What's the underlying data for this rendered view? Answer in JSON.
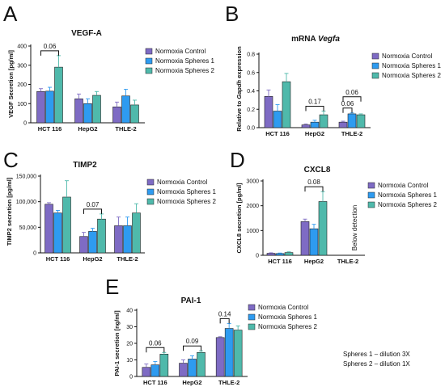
{
  "colors": {
    "normoxia_control": "#7e6bc4",
    "normoxia_spheres_1": "#2e9bf0",
    "normoxia_spheres_2": "#4fb9ab",
    "axis": "#111111"
  },
  "legend_labels": [
    "Normoxia Control",
    "Normoxia Spheres 1",
    "Normoxia Spheres 2"
  ],
  "notes": [
    "Spheres 1 – dilution 3X",
    "Spheres 2 – dilution 1X"
  ],
  "chart_data": [
    {
      "id": "A",
      "type": "bar",
      "title": "VEGF-A",
      "ylabel": "VEGF Secretion [pg/ml]",
      "xlabel": "",
      "categories": [
        "HCT 116",
        "HepG2",
        "THLE-2"
      ],
      "ylim": [
        0,
        400
      ],
      "yticks": [
        0,
        100,
        200,
        300,
        400
      ],
      "ytick_labels": [
        "0",
        "100",
        "200",
        "300",
        "400"
      ],
      "series": [
        {
          "name": "Normoxia Control",
          "values": [
            163,
            125,
            83
          ],
          "errors": [
            15,
            25,
            25
          ]
        },
        {
          "name": "Normoxia Spheres 1",
          "values": [
            165,
            100,
            140
          ],
          "errors": [
            20,
            25,
            35
          ]
        },
        {
          "name": "Normoxia Spheres 2",
          "values": [
            290,
            143,
            93
          ],
          "errors": [
            60,
            20,
            25
          ]
        }
      ],
      "comparisons": [
        {
          "cat": 0,
          "from": 0,
          "to": 2,
          "label": "0.06"
        }
      ],
      "grid": false,
      "legend": "right"
    },
    {
      "id": "B",
      "type": "bar",
      "title": "mRNA Vegfa",
      "title_parts": [
        "mRNA ",
        "Vegfa"
      ],
      "ylabel": "Relative to Gapdh expression",
      "ylabel_parts": [
        "Relative to ",
        "Gapdh",
        " expression"
      ],
      "xlabel": "",
      "categories": [
        "HCT 116",
        "HepG2",
        "THLE-2"
      ],
      "ylim": [
        0,
        0.8
      ],
      "yticks": [
        0,
        0.2,
        0.4,
        0.6,
        0.8
      ],
      "ytick_labels": [
        "0.0",
        "0.2",
        "0.4",
        "0.6",
        "0.8"
      ],
      "series": [
        {
          "name": "Normoxia Control",
          "values": [
            0.34,
            0.03,
            0.06
          ],
          "errors": [
            0.07,
            0.01,
            0.01
          ]
        },
        {
          "name": "Normoxia Spheres 1",
          "values": [
            0.18,
            0.06,
            0.15
          ],
          "errors": [
            0.07,
            0.02,
            0.01
          ]
        },
        {
          "name": "Normoxia Spheres 2",
          "values": [
            0.5,
            0.14,
            0.14
          ],
          "errors": [
            0.09,
            0.04,
            0.01
          ]
        }
      ],
      "comparisons": [
        {
          "cat": 1,
          "from": 0,
          "to": 2,
          "label": "0.17"
        },
        {
          "cat": 2,
          "from": 0,
          "to": 1,
          "label": "0.06"
        },
        {
          "cat": 2,
          "from": 0,
          "to": 2,
          "label": "0.06"
        }
      ],
      "grid": false,
      "legend": "right"
    },
    {
      "id": "C",
      "type": "bar",
      "title": "TIMP2",
      "ylabel": "TIMP2 secretion [pg/ml]",
      "xlabel": "",
      "categories": [
        "HCT 116",
        "HepG2",
        "THLE-2"
      ],
      "ylim": [
        0,
        150000
      ],
      "yticks": [
        0,
        50000,
        100000,
        150000
      ],
      "ytick_labels": [
        "0",
        "50,000",
        "100,000",
        "150,000"
      ],
      "series": [
        {
          "name": "Normoxia Control",
          "values": [
            95000,
            32000,
            53000
          ],
          "errors": [
            3000,
            8000,
            17000
          ]
        },
        {
          "name": "Normoxia Spheres 1",
          "values": [
            78000,
            42000,
            53000
          ],
          "errors": [
            5000,
            6000,
            17000
          ]
        },
        {
          "name": "Normoxia Spheres 2",
          "values": [
            109000,
            66000,
            78000
          ],
          "errors": [
            32000,
            10000,
            18000
          ]
        }
      ],
      "comparisons": [
        {
          "cat": 1,
          "from": 0,
          "to": 2,
          "label": "0.07"
        }
      ],
      "grid": false,
      "legend": "right"
    },
    {
      "id": "D",
      "type": "bar",
      "title": "CXCL8",
      "ylabel": "CXCL8 secretion [pg/ml]",
      "xlabel": "",
      "categories": [
        "HCT 116",
        "HepG2",
        "THLE-2"
      ],
      "ylim": [
        0,
        3000
      ],
      "yticks": [
        0,
        1000,
        2000,
        3000
      ],
      "ytick_labels": [
        "0",
        "1000",
        "2000",
        "3000"
      ],
      "series": [
        {
          "name": "Normoxia Control",
          "values": [
            80,
            1360,
            null
          ],
          "errors": [
            20,
            100,
            null
          ]
        },
        {
          "name": "Normoxia Spheres 1",
          "values": [
            70,
            1070,
            null
          ],
          "errors": [
            20,
            180,
            null
          ]
        },
        {
          "name": "Normoxia Spheres 2",
          "values": [
            110,
            2170,
            null
          ],
          "errors": [
            30,
            400,
            null
          ]
        }
      ],
      "comparisons": [
        {
          "cat": 1,
          "from": 0,
          "to": 2,
          "label": "0.08"
        }
      ],
      "annotation": "Below detection",
      "grid": false,
      "legend": "right"
    },
    {
      "id": "E",
      "type": "bar",
      "title": "PAI-1",
      "ylabel": "PAI-1 secretion [ng/ml]",
      "xlabel": "",
      "categories": [
        "HCT 116",
        "HepG2",
        "THLE-2"
      ],
      "ylim": [
        0,
        40
      ],
      "yticks": [
        0,
        10,
        20,
        30,
        40
      ],
      "ytick_labels": [
        "0",
        "10",
        "20",
        "30",
        "40"
      ],
      "series": [
        {
          "name": "Normoxia Control",
          "values": [
            5.5,
            8,
            23.5
          ],
          "errors": [
            2,
            2,
            0.5
          ]
        },
        {
          "name": "Normoxia Spheres 1",
          "values": [
            7,
            10.5,
            29
          ],
          "errors": [
            2,
            2,
            3
          ]
        },
        {
          "name": "Normoxia Spheres 2",
          "values": [
            13.5,
            14.5,
            28
          ],
          "errors": [
            1,
            1,
            2.5
          ]
        }
      ],
      "comparisons": [
        {
          "cat": 0,
          "from": 0,
          "to": 2,
          "label": "0.06"
        },
        {
          "cat": 1,
          "from": 0,
          "to": 2,
          "label": "0.09"
        },
        {
          "cat": 2,
          "from": 0,
          "to": 1,
          "label": "0.14"
        }
      ],
      "grid": false,
      "legend": "right"
    }
  ]
}
